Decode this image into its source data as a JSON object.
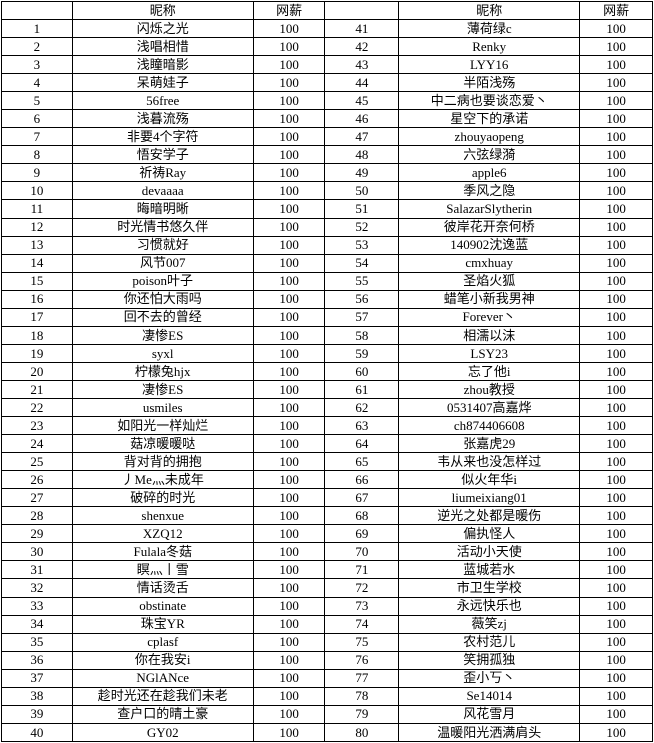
{
  "colors": {
    "border": "#000000",
    "background": "#ffffff",
    "text": "#000000"
  },
  "table": {
    "header": {
      "rank": "",
      "nickname": "昵称",
      "salary": "网薪"
    },
    "rows": [
      {
        "rank": "1",
        "nickname": "闪烁之光",
        "salary": "100"
      },
      {
        "rank": "2",
        "nickname": "浅唱相惜",
        "salary": "100"
      },
      {
        "rank": "3",
        "nickname": "浅瞳暗影",
        "salary": "100"
      },
      {
        "rank": "4",
        "nickname": "呆萌娃子",
        "salary": "100"
      },
      {
        "rank": "5",
        "nickname": "56free",
        "salary": "100"
      },
      {
        "rank": "6",
        "nickname": "浅暮流殇",
        "salary": "100"
      },
      {
        "rank": "7",
        "nickname": "非要4个字符",
        "salary": "100"
      },
      {
        "rank": "8",
        "nickname": "悟安学子",
        "salary": "100"
      },
      {
        "rank": "9",
        "nickname": "祈祷Ray",
        "salary": "100"
      },
      {
        "rank": "10",
        "nickname": "devaaaa",
        "salary": "100"
      },
      {
        "rank": "11",
        "nickname": "晦暗明晰",
        "salary": "100"
      },
      {
        "rank": "12",
        "nickname": "时光情书悠久伴",
        "salary": "100"
      },
      {
        "rank": "13",
        "nickname": "习惯就好",
        "salary": "100"
      },
      {
        "rank": "14",
        "nickname": "风节007",
        "salary": "100"
      },
      {
        "rank": "15",
        "nickname": "poison叶子",
        "salary": "100"
      },
      {
        "rank": "16",
        "nickname": "你还怕大雨吗",
        "salary": "100"
      },
      {
        "rank": "17",
        "nickname": "回不去的曾经",
        "salary": "100"
      },
      {
        "rank": "18",
        "nickname": "凄惨ES",
        "salary": "100"
      },
      {
        "rank": "19",
        "nickname": "syxl",
        "salary": "100"
      },
      {
        "rank": "20",
        "nickname": "柠檬兔hjx",
        "salary": "100"
      },
      {
        "rank": "21",
        "nickname": "凄惨ES",
        "salary": "100"
      },
      {
        "rank": "22",
        "nickname": "usmiles",
        "salary": "100"
      },
      {
        "rank": "23",
        "nickname": "如阳光一样灿烂",
        "salary": "100"
      },
      {
        "rank": "24",
        "nickname": "菇凉暖暖哒",
        "salary": "100"
      },
      {
        "rank": "25",
        "nickname": "背对背的拥抱",
        "salary": "100"
      },
      {
        "rank": "26",
        "nickname": "丿Me灬未成年",
        "salary": "100"
      },
      {
        "rank": "27",
        "nickname": "破碎的时光",
        "salary": "100"
      },
      {
        "rank": "28",
        "nickname": "shenxue",
        "salary": "100"
      },
      {
        "rank": "29",
        "nickname": "XZQ12",
        "salary": "100"
      },
      {
        "rank": "30",
        "nickname": "Fulala冬菇",
        "salary": "100"
      },
      {
        "rank": "31",
        "nickname": "瞑灬丨雪",
        "salary": "100"
      },
      {
        "rank": "32",
        "nickname": "情话烫舌",
        "salary": "100"
      },
      {
        "rank": "33",
        "nickname": "obstinate",
        "salary": "100"
      },
      {
        "rank": "34",
        "nickname": "珠宝YR",
        "salary": "100"
      },
      {
        "rank": "35",
        "nickname": "cplasf",
        "salary": "100"
      },
      {
        "rank": "36",
        "nickname": "你在我安i",
        "salary": "100"
      },
      {
        "rank": "37",
        "nickname": "NGlANce",
        "salary": "100"
      },
      {
        "rank": "38",
        "nickname": "趁时光还在趁我们未老",
        "salary": "100"
      },
      {
        "rank": "39",
        "nickname": "查户口的晴土豪",
        "salary": "100"
      },
      {
        "rank": "40",
        "nickname": "GY02",
        "salary": "100"
      },
      {
        "rank": "41",
        "nickname": "薄荷绿c",
        "salary": "100"
      },
      {
        "rank": "42",
        "nickname": "Renky",
        "salary": "100"
      },
      {
        "rank": "43",
        "nickname": "LYY16",
        "salary": "100"
      },
      {
        "rank": "44",
        "nickname": "半陌浅殇",
        "salary": "100"
      },
      {
        "rank": "45",
        "nickname": "中二病也要谈恋爱丶",
        "salary": "100"
      },
      {
        "rank": "46",
        "nickname": "星空下的承诺",
        "salary": "100"
      },
      {
        "rank": "47",
        "nickname": "zhouyaopeng",
        "salary": "100"
      },
      {
        "rank": "48",
        "nickname": "六弦绿漪",
        "salary": "100"
      },
      {
        "rank": "49",
        "nickname": "apple6",
        "salary": "100"
      },
      {
        "rank": "50",
        "nickname": "季风之隐",
        "salary": "100"
      },
      {
        "rank": "51",
        "nickname": "SalazarSlytherin",
        "salary": "100"
      },
      {
        "rank": "52",
        "nickname": "彼岸花开奈何桥",
        "salary": "100"
      },
      {
        "rank": "53",
        "nickname": "140902沈逸蓝",
        "salary": "100"
      },
      {
        "rank": "54",
        "nickname": "cmxhuay",
        "salary": "100"
      },
      {
        "rank": "55",
        "nickname": "圣焰火狐",
        "salary": "100"
      },
      {
        "rank": "56",
        "nickname": "蜡笔小新我男神",
        "salary": "100"
      },
      {
        "rank": "57",
        "nickname": "Forever丶",
        "salary": "100"
      },
      {
        "rank": "58",
        "nickname": "相濡以沫",
        "salary": "100"
      },
      {
        "rank": "59",
        "nickname": "LSY23",
        "salary": "100"
      },
      {
        "rank": "60",
        "nickname": "忘了他i",
        "salary": "100"
      },
      {
        "rank": "61",
        "nickname": "zhou教授",
        "salary": "100"
      },
      {
        "rank": "62",
        "nickname": "0531407高嘉烨",
        "salary": "100"
      },
      {
        "rank": "63",
        "nickname": "ch874406608",
        "salary": "100"
      },
      {
        "rank": "64",
        "nickname": "张嘉虎29",
        "salary": "100"
      },
      {
        "rank": "65",
        "nickname": "韦从来也没怎样过",
        "salary": "100"
      },
      {
        "rank": "66",
        "nickname": "似火年华i",
        "salary": "100"
      },
      {
        "rank": "67",
        "nickname": "liumeixiang01",
        "salary": "100"
      },
      {
        "rank": "68",
        "nickname": "逆光之处都是暖伤",
        "salary": "100"
      },
      {
        "rank": "69",
        "nickname": "偏执怪人",
        "salary": "100"
      },
      {
        "rank": "70",
        "nickname": "活动小天使",
        "salary": "100"
      },
      {
        "rank": "71",
        "nickname": "蓝城若水",
        "salary": "100"
      },
      {
        "rank": "72",
        "nickname": "市卫生学校",
        "salary": "100"
      },
      {
        "rank": "73",
        "nickname": "永远快乐也",
        "salary": "100"
      },
      {
        "rank": "74",
        "nickname": "薇笑zj",
        "salary": "100"
      },
      {
        "rank": "75",
        "nickname": "农村范儿",
        "salary": "100"
      },
      {
        "rank": "76",
        "nickname": "笑拥孤独",
        "salary": "100"
      },
      {
        "rank": "77",
        "nickname": "歪小丂丶",
        "salary": "100"
      },
      {
        "rank": "78",
        "nickname": "Se14014",
        "salary": "100"
      },
      {
        "rank": "79",
        "nickname": "风花雪月",
        "salary": "100"
      },
      {
        "rank": "80",
        "nickname": "温暖阳光洒满肩头",
        "salary": "100"
      }
    ]
  }
}
